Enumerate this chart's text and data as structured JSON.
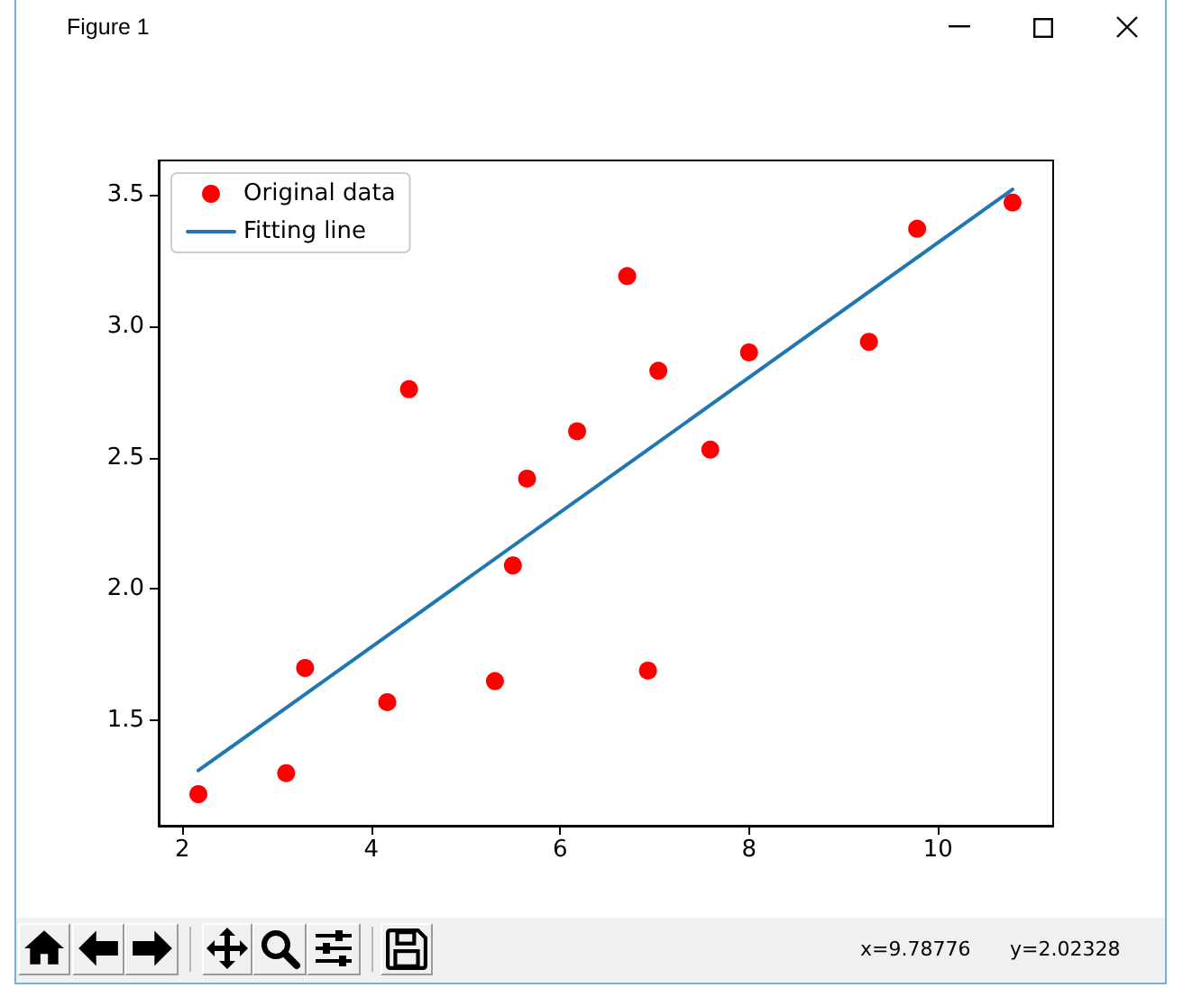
{
  "chart_data": {
    "type": "scatter",
    "annotations": [
      "Figure 1",
      "x=9.78776",
      "y=2.02328"
    ],
    "series": [
      {
        "name": "Original data",
        "color": "#ff0000",
        "marker": "circle",
        "x": [
          3.3,
          4.4,
          5.5,
          6.71,
          6.93,
          4.17,
          9.78,
          6.18,
          7.59,
          2.17,
          7.04,
          10.79,
          5.31,
          8.0,
          3.1,
          5.65,
          9.27
        ],
        "values": [
          1.7,
          2.76,
          2.09,
          3.19,
          1.69,
          1.57,
          3.37,
          2.6,
          2.53,
          1.22,
          2.83,
          3.47,
          1.65,
          2.9,
          1.3,
          2.42,
          2.94
        ]
      },
      {
        "name": "Fitting line",
        "type": "line",
        "color": "#1f77b4",
        "marker": "none",
        "line_style": "solid",
        "x": [
          2.17,
          10.79
        ],
        "values": [
          1.31,
          3.52
        ]
      }
    ],
    "xlim": [
      1.75,
      11.22
    ],
    "xticks": [
      2,
      4,
      6,
      8,
      10
    ],
    "ylim": [
      1.1,
      3.63
    ],
    "yticks": [
      1.5,
      {
        "value": 2,
        "label": "2.0"
      },
      2.5,
      {
        "value": 3,
        "label": "3.0"
      },
      3.5
    ],
    "legend": "top left"
  }
}
